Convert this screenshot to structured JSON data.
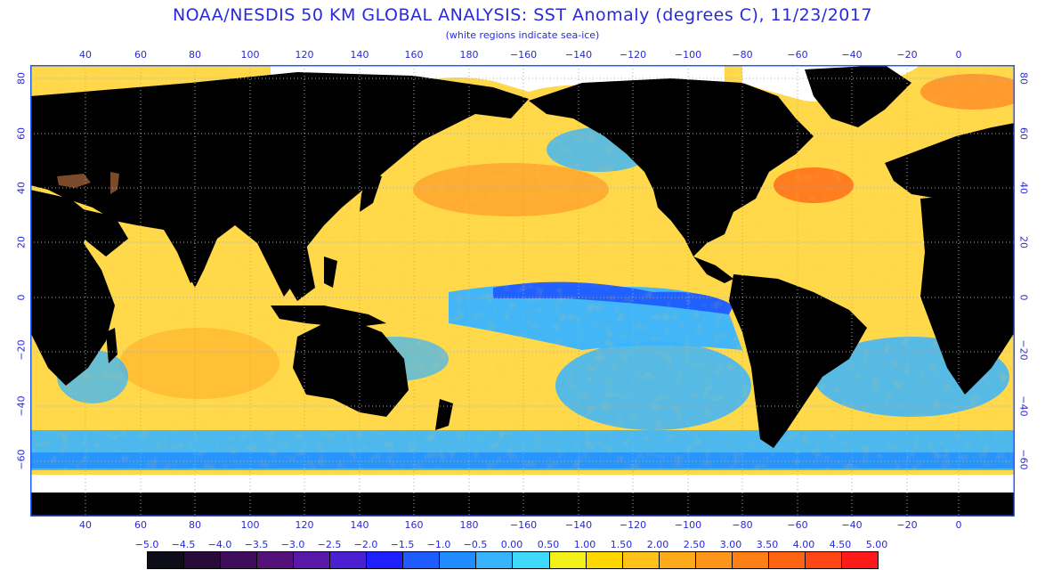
{
  "title": "NOAA/NESDIS 50 KM GLOBAL ANALYSIS: SST Anomaly (degrees C), 11/23/2017",
  "subtitle": "(white regions indicate sea-ice)",
  "longitude_labels": [
    "40",
    "60",
    "80",
    "100",
    "120",
    "140",
    "160",
    "180",
    "−160",
    "−140",
    "−120",
    "−100",
    "−80",
    "−60",
    "−40",
    "−20",
    "0"
  ],
  "latitude_labels": [
    "80",
    "60",
    "40",
    "20",
    "0",
    "−20",
    "−40",
    "−60"
  ],
  "scale": {
    "labels": [
      "−5.0",
      "−4.5",
      "−4.0",
      "−3.5",
      "−3.0",
      "−2.5",
      "−2.0",
      "−1.5",
      "−1.0",
      "−0.5",
      "0.00",
      "0.50",
      "1.00",
      "1.50",
      "2.00",
      "2.50",
      "3.00",
      "3.50",
      "4.00",
      "4.50",
      "5.00"
    ],
    "colors": [
      "#0d0d1a",
      "#2a0a3a",
      "#3f0d5c",
      "#55117a",
      "#5a18a8",
      "#4a20d0",
      "#1f1fff",
      "#1f5cff",
      "#1f8cff",
      "#38b4ff",
      "#3fd8ff",
      "#f2f21a",
      "#ffd700",
      "#ffc21a",
      "#ffaa1a",
      "#ff961a",
      "#ff7f14",
      "#ff6414",
      "#ff4614",
      "#ff1a1a"
    ]
  },
  "colors": {
    "land": "#000000",
    "sea_ice": "#ffffff",
    "grid": "#aaaaaa",
    "frame": "#1f5cff",
    "neutral_ocean": "#ffd94a"
  }
}
